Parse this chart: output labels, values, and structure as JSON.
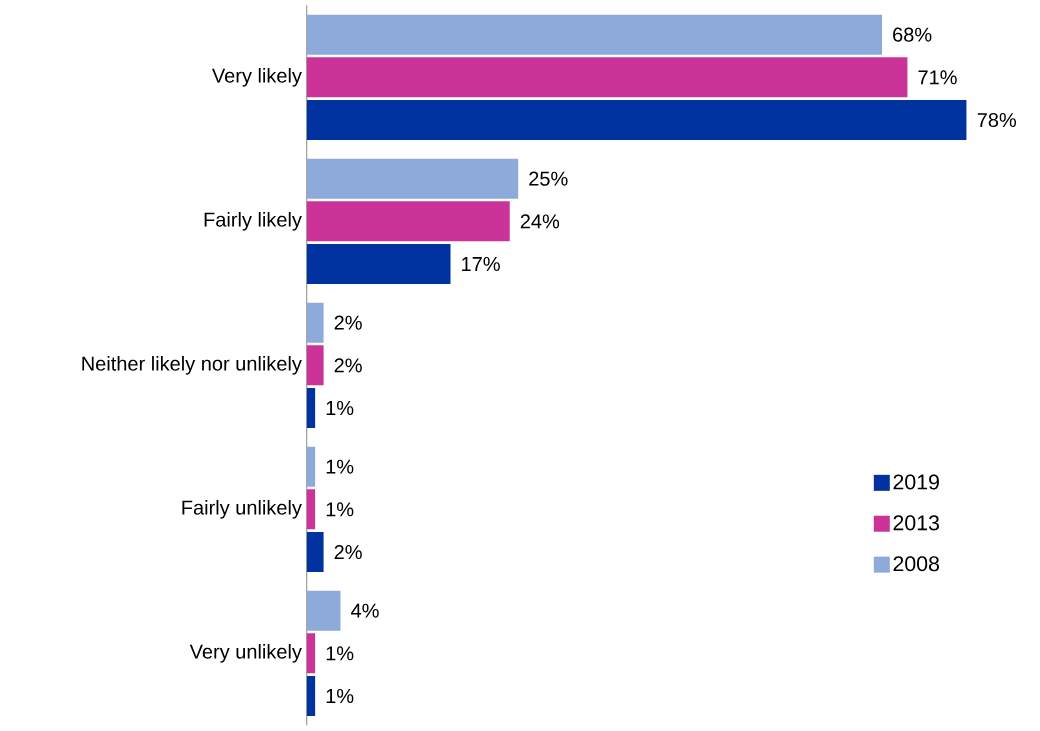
{
  "chart_data": {
    "type": "bar",
    "orientation": "horizontal",
    "categories": [
      "Very likely",
      "Fairly likely",
      "Neither likely nor unlikely",
      "Fairly unlikely",
      "Very unlikely"
    ],
    "series": [
      {
        "name": "2019",
        "color": "#0033a0",
        "values": [
          78,
          17,
          1,
          2,
          1
        ],
        "value_labels": [
          "78%",
          "17%",
          "1%",
          "2%",
          "1%"
        ]
      },
      {
        "name": "2013",
        "color": "#cc3399",
        "values": [
          71,
          24,
          2,
          1,
          1
        ],
        "value_labels": [
          "71%",
          "24%",
          "2%",
          "1%",
          "1%"
        ]
      },
      {
        "name": "2008",
        "color": "#8eaadb",
        "values": [
          68,
          25,
          2,
          1,
          4
        ],
        "value_labels": [
          "68%",
          "25%",
          "2%",
          "1%",
          "4%"
        ]
      }
    ],
    "legend": "right"
  }
}
